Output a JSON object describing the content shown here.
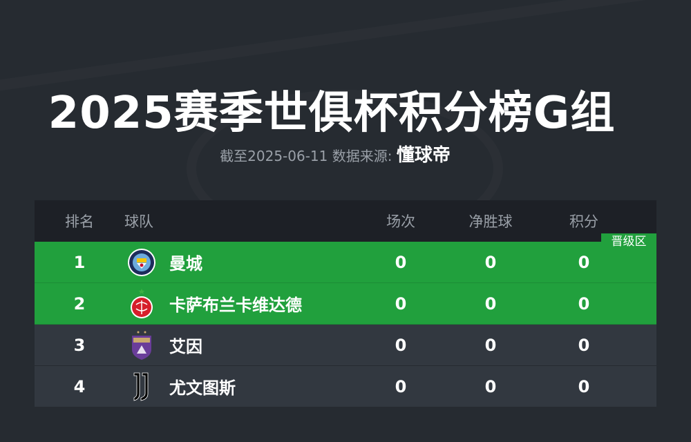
{
  "title": "2025赛季世俱杯积分榜G组",
  "subtitle": {
    "date_label": "截至2025-06-11 数据来源:",
    "source": "懂球帝"
  },
  "table": {
    "headers": {
      "rank": "排名",
      "team": "球队",
      "played": "场次",
      "goal_diff": "净胜球",
      "points": "积分"
    },
    "qualify_badge": "晋级区",
    "rows": [
      {
        "rank": "1",
        "team": "曼城",
        "played": "0",
        "goal_diff": "0",
        "points": "0",
        "zone": "qualify",
        "logo": "manchester-city-crest"
      },
      {
        "rank": "2",
        "team": "卡萨布兰卡维达德",
        "played": "0",
        "goal_diff": "0",
        "points": "0",
        "zone": "qualify",
        "logo": "wydad-casablanca-crest"
      },
      {
        "rank": "3",
        "team": "艾因",
        "played": "0",
        "goal_diff": "0",
        "points": "0",
        "zone": "none",
        "logo": "al-ain-crest"
      },
      {
        "rank": "4",
        "team": "尤文图斯",
        "played": "0",
        "goal_diff": "0",
        "points": "0",
        "zone": "none",
        "logo": "juventus-logo"
      }
    ]
  },
  "colors": {
    "background": "#262b31",
    "header": "#1d2026",
    "qualify": "#21a03d",
    "row": "#323840"
  }
}
